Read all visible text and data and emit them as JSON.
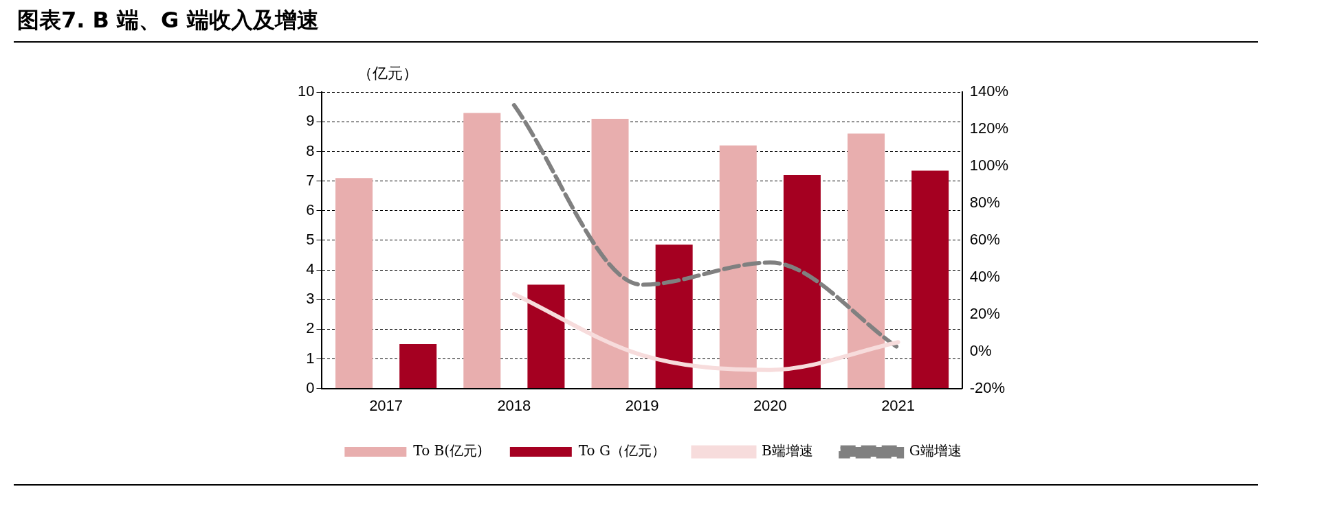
{
  "chart_data": {
    "type": "bar",
    "title": "图表7. B 端、G 端收入及增速",
    "ylabel": "（亿元）",
    "categories": [
      "2017",
      "2018",
      "2019",
      "2020",
      "2021"
    ],
    "series": [
      {
        "name": "To B(亿元)",
        "color": "#e8aeae",
        "values": [
          7.1,
          9.3,
          9.1,
          8.2,
          8.6
        ]
      },
      {
        "name": "To G（亿元）",
        "color": "#a50021",
        "values": [
          1.5,
          3.5,
          4.85,
          7.2,
          7.35
        ]
      },
      {
        "name": "B端增速",
        "type": "line",
        "axis": "y2",
        "color": "#f7dcdc",
        "line_style": "solid",
        "values": [
          null,
          31,
          -2,
          -10,
          5
        ]
      },
      {
        "name": "G端增速",
        "type": "line",
        "axis": "y2",
        "color": "#808080",
        "line_style": "dashed",
        "values": [
          null,
          133,
          36,
          48,
          2
        ]
      }
    ],
    "ylim": [
      0,
      10
    ],
    "yticks": [
      0,
      1,
      2,
      3,
      4,
      5,
      6,
      7,
      8,
      9,
      10
    ],
    "y2lim": [
      -20,
      140
    ],
    "y2ticks": [
      {
        "value": -20,
        "label": "-20%"
      },
      {
        "value": 0,
        "label": "0%"
      },
      {
        "value": 20,
        "label": "20%"
      },
      {
        "value": 40,
        "label": "40%"
      },
      {
        "value": 60,
        "label": "60%"
      },
      {
        "value": 80,
        "label": "80%"
      },
      {
        "value": 100,
        "label": "100%"
      },
      {
        "value": 120,
        "label": "120%"
      },
      {
        "value": 140,
        "label": "140%"
      }
    ],
    "grid": "y",
    "legend": "bottom",
    "marker": "none"
  }
}
